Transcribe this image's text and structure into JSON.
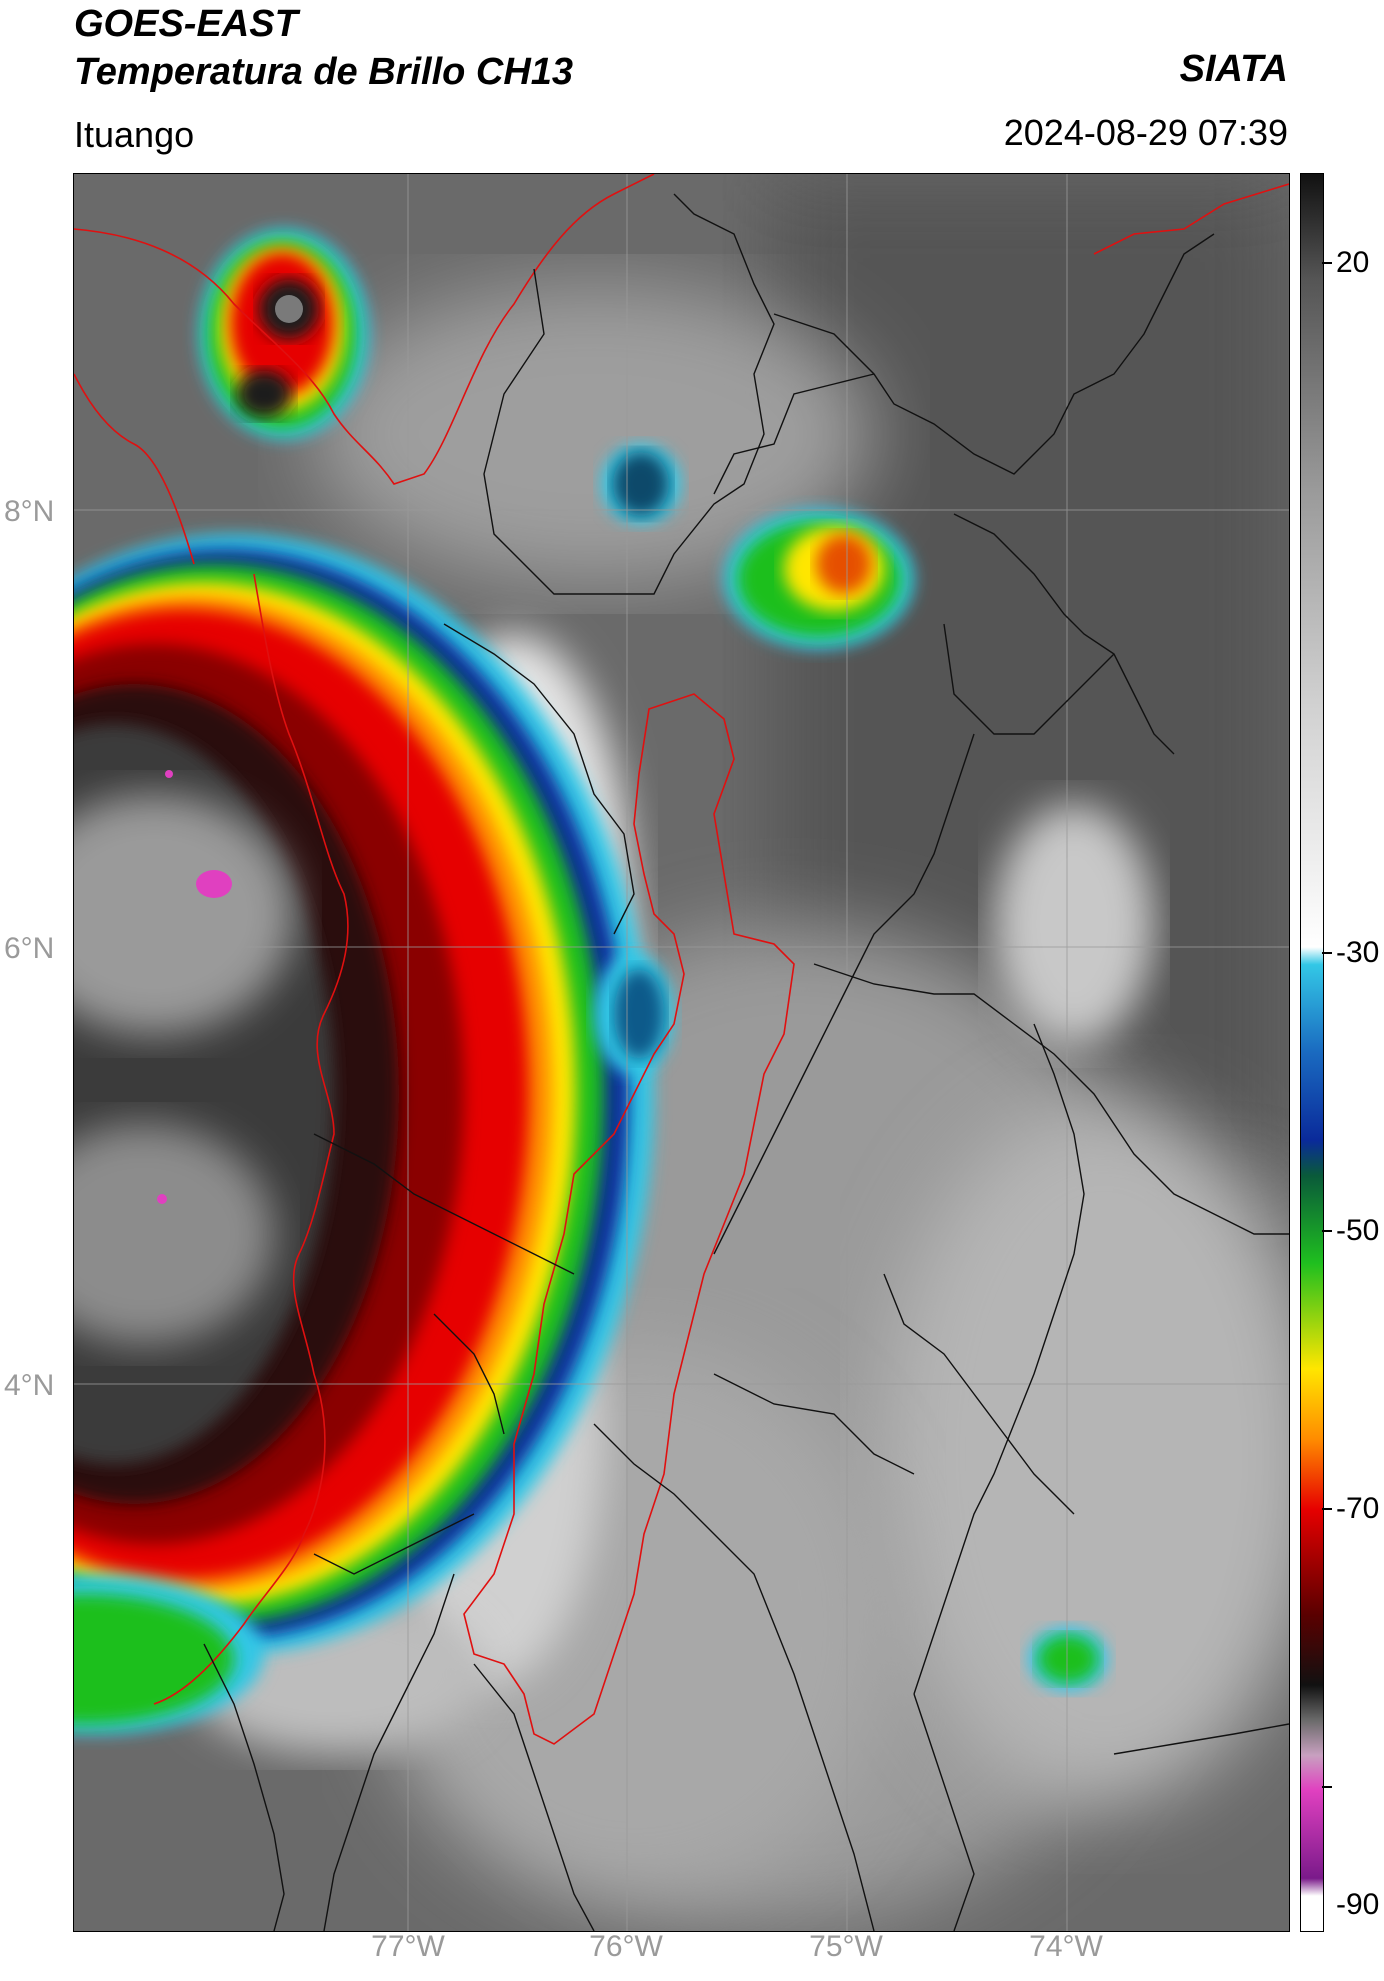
{
  "header": {
    "title_line1": "GOES-EAST",
    "title_line2": "Temperatura de Brillo CH13",
    "source": "SIATA",
    "location": "Ituango",
    "datetime": "2024-08-29 07:39"
  },
  "map": {
    "lat_labels": [
      "8°N",
      "6°N",
      "4°N"
    ],
    "lon_labels": [
      "77°W",
      "76°W",
      "75°W",
      "74°W"
    ]
  },
  "colorbar": {
    "ticks": [
      "20",
      "-30",
      "-50",
      "-70",
      "-90"
    ],
    "colors": {
      "white": "#ffffff",
      "cyan": "#33c7e6",
      "blue": "#0a2a9a",
      "green": "#1fbf1f",
      "yellow": "#ffe600",
      "orange": "#ff8c00",
      "red": "#e60000",
      "darkred": "#5a0000",
      "black": "#111111",
      "magenta": "#e040c0",
      "purple": "#7a1a8a"
    }
  }
}
